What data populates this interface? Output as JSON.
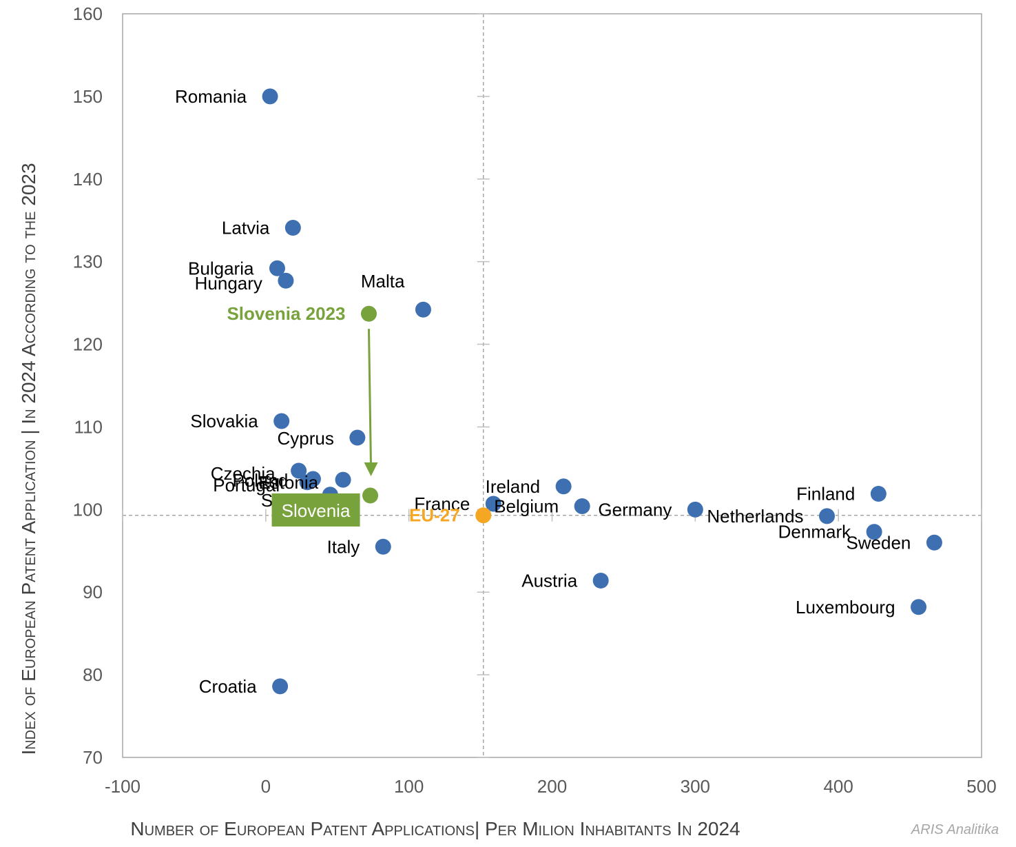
{
  "chart_data": {
    "type": "scatter",
    "title": "",
    "xlabel": "Number of European Patent Applications| Per Milion Inhabitants In 2024",
    "ylabel": "Index of European Patent Application | In 2024 According to the 2023",
    "xlim": [
      -100,
      500
    ],
    "ylim": [
      70,
      160
    ],
    "xticks": [
      -100,
      0,
      100,
      200,
      300,
      400,
      500
    ],
    "yticks": [
      70,
      80,
      90,
      100,
      110,
      120,
      130,
      140,
      150,
      160
    ],
    "reference_lines": {
      "x": 152,
      "y": 99.3
    },
    "colors": {
      "country": "#3e6fb0",
      "slovenia": "#77a23c",
      "eu": "#f5a623",
      "arrow": "#77a23c"
    },
    "points": [
      {
        "name": "Romania",
        "x": 3,
        "y": 150,
        "group": "country",
        "label_side": "left"
      },
      {
        "name": "Latvia",
        "x": 19,
        "y": 134.1,
        "group": "country",
        "label_side": "left"
      },
      {
        "name": "Bulgaria",
        "x": 8,
        "y": 129.2,
        "group": "country",
        "label_side": "left"
      },
      {
        "name": "Hungary",
        "x": 14,
        "y": 127.7,
        "group": "country",
        "label_side": "left"
      },
      {
        "name": "Malta",
        "x": 110,
        "y": 124.2,
        "group": "country",
        "label_side": "above-left"
      },
      {
        "name": "Slovakia",
        "x": 11,
        "y": 110.7,
        "group": "country",
        "label_side": "left"
      },
      {
        "name": "Cyprus",
        "x": 64,
        "y": 108.7,
        "group": "country",
        "label_side": "left"
      },
      {
        "name": "Czechia",
        "x": 23,
        "y": 104.7,
        "group": "country",
        "label_side": "left"
      },
      {
        "name": "Poland",
        "x": 33,
        "y": 103.7,
        "group": "country",
        "label_side": "left"
      },
      {
        "name": "Estonia",
        "x": 54,
        "y": 103.6,
        "group": "country",
        "label_side": "left"
      },
      {
        "name": "Portugal",
        "x": 29,
        "y": 103.3,
        "group": "country",
        "label_side": "left"
      },
      {
        "name": "Spain",
        "x": 45,
        "y": 101.8,
        "group": "country",
        "label_side": "left"
      },
      {
        "name": "Italy",
        "x": 82,
        "y": 95.5,
        "group": "country",
        "label_side": "left"
      },
      {
        "name": "Croatia",
        "x": 10,
        "y": 78.6,
        "group": "country",
        "label_side": "left"
      },
      {
        "name": "Ireland",
        "x": 208,
        "y": 102.8,
        "group": "country",
        "label_side": "left"
      },
      {
        "name": "France",
        "x": 159,
        "y": 100.7,
        "group": "country",
        "label_side": "left"
      },
      {
        "name": "Belgium",
        "x": 221,
        "y": 100.4,
        "group": "country",
        "label_side": "left"
      },
      {
        "name": "Germany",
        "x": 300,
        "y": 100.0,
        "group": "country",
        "label_side": "left"
      },
      {
        "name": "Netherlands",
        "x": 392,
        "y": 99.2,
        "group": "country",
        "label_side": "left"
      },
      {
        "name": "Finland",
        "x": 428,
        "y": 101.9,
        "group": "country",
        "label_side": "left"
      },
      {
        "name": "Denmark",
        "x": 425,
        "y": 97.3,
        "group": "country",
        "label_side": "left"
      },
      {
        "name": "Sweden",
        "x": 467,
        "y": 96.0,
        "group": "country",
        "label_side": "left"
      },
      {
        "name": "Austria",
        "x": 234,
        "y": 91.4,
        "group": "country",
        "label_side": "left"
      },
      {
        "name": "Luxembourg",
        "x": 456,
        "y": 88.2,
        "group": "country",
        "label_side": "left"
      },
      {
        "name": "Slovenia 2023",
        "x": 72,
        "y": 123.7,
        "group": "slovenia",
        "label_side": "left"
      },
      {
        "name": "Slovenia",
        "x": 73,
        "y": 101.7,
        "group": "slovenia",
        "label_side": "box"
      },
      {
        "name": "EU-27",
        "x": 152,
        "y": 99.3,
        "group": "eu",
        "label_side": "left"
      }
    ],
    "arrow": {
      "from": "Slovenia 2023",
      "to": "Slovenia"
    }
  },
  "credit": "ARIS Analitika"
}
